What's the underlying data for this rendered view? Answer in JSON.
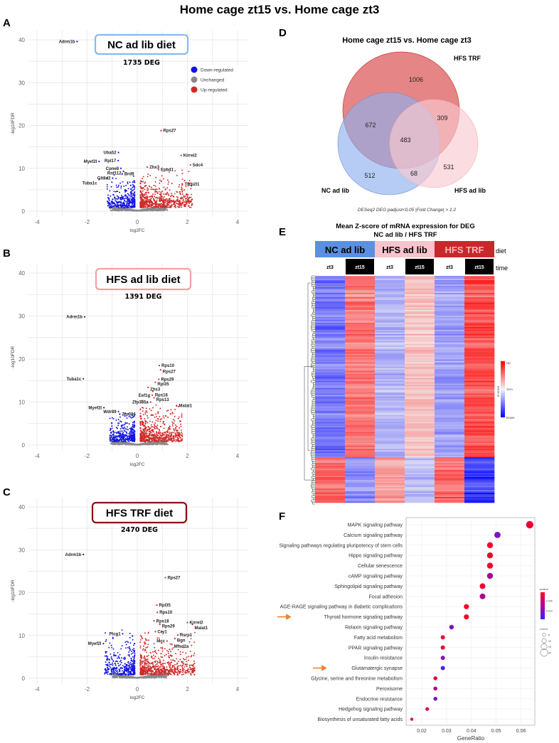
{
  "title": "Home cage zt15 vs. Home cage zt3",
  "panel_letters": [
    "A",
    "B",
    "C",
    "D",
    "E",
    "F"
  ],
  "chart_data": [
    {
      "type": "scatter",
      "id": "A",
      "title": "NC ad lib diet",
      "subtitle": "1735 DEG",
      "box_color": "#8ab8f0",
      "xlabel": "log2FC",
      "ylabel": "-log10FDR",
      "xlim": [
        -4.4,
        4.4
      ],
      "ylim": [
        -1,
        42
      ],
      "xticks": [
        "-4",
        "-2",
        "0",
        "2",
        "4"
      ],
      "yticks": [
        "0",
        "10",
        "20",
        "30",
        "40"
      ],
      "legend": {
        "position": "top-right",
        "entries": [
          {
            "label": "Down-regulated",
            "color": "#1414e6"
          },
          {
            "label": "Unchanged",
            "color": "#8a8a8a"
          },
          {
            "label": "Up-regulated",
            "color": "#d02a2a"
          }
        ]
      },
      "cloud": {
        "down_max_y": 7,
        "up_max_y": 8,
        "up_max_x": 2.2,
        "down_min_x": -1.2
      },
      "labeled_points": [
        {
          "gene": "Adrm1b",
          "x": -2.4,
          "y": 39.6,
          "status": "down"
        },
        {
          "gene": "Rps27",
          "x": 0.95,
          "y": 18.8,
          "status": "up"
        },
        {
          "gene": "Uba52",
          "x": -0.75,
          "y": 13.7,
          "status": "down"
        },
        {
          "gene": "Myef2l",
          "x": -1.52,
          "y": 11.6,
          "status": "down"
        },
        {
          "gene": "Rpl17",
          "x": -0.76,
          "y": 11.8,
          "status": "down"
        },
        {
          "gene": "Cpne8",
          "x": -0.65,
          "y": 10.0,
          "status": "down"
        },
        {
          "gene": "Rnf112",
          "x": -0.55,
          "y": 9.3,
          "status": "down"
        },
        {
          "gene": "Brd9",
          "x": -0.6,
          "y": 8.7,
          "status": "down"
        },
        {
          "gene": "Glt8d2",
          "x": -0.98,
          "y": 7.7,
          "status": "down"
        },
        {
          "gene": "Tuba1c",
          "x": -1.52,
          "y": 7.4,
          "status": "down"
        },
        {
          "gene": "Zhx3",
          "x": 0.4,
          "y": 10.3,
          "status": "up"
        },
        {
          "gene": "Epb41",
          "x": 0.85,
          "y": 9.7,
          "status": "up"
        },
        {
          "gene": "Kirrel2",
          "x": 1.75,
          "y": 13.0,
          "status": "up"
        },
        {
          "gene": "Sdc4",
          "x": 2.12,
          "y": 10.8,
          "status": "up"
        },
        {
          "gene": "Tfcp2l1",
          "x": 1.8,
          "y": 6.3,
          "status": "up"
        }
      ]
    },
    {
      "type": "scatter",
      "id": "B",
      "title": "HFS ad lib diet",
      "subtitle": "1391 DEG",
      "box_color": "#f3a0a0",
      "xlabel": "log2FC",
      "ylabel": "-log10FDR",
      "xlim": [
        -4.4,
        4.4
      ],
      "ylim": [
        -1,
        42
      ],
      "xticks": [
        "-4",
        "-2",
        "0",
        "2",
        "4"
      ],
      "yticks": [
        "0",
        "10",
        "20",
        "30",
        "40"
      ],
      "cloud": {
        "down_max_y": 5.5,
        "up_max_y": 9,
        "up_max_x": 1.8,
        "down_min_x": -1.1
      },
      "labeled_points": [
        {
          "gene": "Adrm1b",
          "x": -2.1,
          "y": 29.8,
          "status": "down"
        },
        {
          "gene": "Tuba1c",
          "x": -2.15,
          "y": 15.4,
          "status": "down"
        },
        {
          "gene": "Myef2l",
          "x": -1.33,
          "y": 8.7,
          "status": "down"
        },
        {
          "gene": "Wdr89",
          "x": -0.75,
          "y": 7.8,
          "status": "down"
        },
        {
          "gene": "Zfp386",
          "x": -0.7,
          "y": 7.2,
          "status": "down"
        },
        {
          "gene": "Rps10",
          "x": 0.88,
          "y": 18.5,
          "status": "up"
        },
        {
          "gene": "Rps27",
          "x": 0.93,
          "y": 17.5,
          "status": "up"
        },
        {
          "gene": "Rps29",
          "x": 0.86,
          "y": 15.3,
          "status": "up"
        },
        {
          "gene": "Rpl35",
          "x": 0.72,
          "y": 14.6,
          "status": "up"
        },
        {
          "gene": "Zhx3",
          "x": 0.43,
          "y": 13.4,
          "status": "up"
        },
        {
          "gene": "Rps18",
          "x": 0.62,
          "y": 12.5,
          "status": "up"
        },
        {
          "gene": "Eef1g",
          "x": 0.6,
          "y": 11.6,
          "status": "up"
        },
        {
          "gene": "Rps13",
          "x": 0.67,
          "y": 11.0,
          "status": "up"
        },
        {
          "gene": "Zfp385a",
          "x": 0.53,
          "y": 10.0,
          "status": "up"
        },
        {
          "gene": "Malat1",
          "x": 1.57,
          "y": 9.2,
          "status": "up"
        }
      ]
    },
    {
      "type": "scatter",
      "id": "C",
      "title": "HFS TRF diet",
      "subtitle": "2470 DEG",
      "box_color": "#8b1010",
      "xlabel": "log2FC",
      "ylabel": "-log10FDR",
      "xlim": [
        -4.4,
        4.4
      ],
      "ylim": [
        -1,
        42
      ],
      "xticks": [
        "-4",
        "-2",
        "0",
        "2",
        "4"
      ],
      "yticks": [
        "0",
        "10",
        "20",
        "30",
        "40"
      ],
      "cloud": {
        "down_max_y": 10,
        "up_max_y": 10,
        "up_max_x": 2.3,
        "down_min_x": -1.3
      },
      "labeled_points": [
        {
          "gene": "Adrm1b",
          "x": -2.15,
          "y": 28.9,
          "status": "down"
        },
        {
          "gene": "Rps27",
          "x": 1.12,
          "y": 23.5,
          "status": "up"
        },
        {
          "gene": "Rpl35",
          "x": 0.78,
          "y": 17.1,
          "status": "up"
        },
        {
          "gene": "Rps10",
          "x": 0.8,
          "y": 15.4,
          "status": "up"
        },
        {
          "gene": "Rps18",
          "x": 0.67,
          "y": 13.4,
          "status": "up"
        },
        {
          "gene": "Kirrel2",
          "x": 2.0,
          "y": 13.0,
          "status": "up"
        },
        {
          "gene": "Malat1",
          "x": 2.2,
          "y": 12.6,
          "status": "up"
        },
        {
          "gene": "Rps29",
          "x": 0.9,
          "y": 12.6,
          "status": "up"
        },
        {
          "gene": "Cry1",
          "x": 0.72,
          "y": 10.9,
          "status": "up"
        },
        {
          "gene": "Plcg1",
          "x": -0.58,
          "y": 10.4,
          "status": "down"
        },
        {
          "gene": "Rsrp1",
          "x": 1.62,
          "y": 10.1,
          "status": "up"
        },
        {
          "gene": "Bgn",
          "x": 1.5,
          "y": 9.3,
          "status": "up"
        },
        {
          "gene": "Mcc",
          "x": 1.19,
          "y": 8.7,
          "status": "up"
        },
        {
          "gene": "Mfsd2a",
          "x": 1.38,
          "y": 7.9,
          "status": "up"
        },
        {
          "gene": "Myef2l",
          "x": -1.35,
          "y": 8.1,
          "status": "down"
        }
      ]
    },
    {
      "type": "venn",
      "id": "D",
      "title": "Home cage zt15 vs. Home cage zt3",
      "sets": [
        {
          "name": "HFS TRF",
          "color": "#e06666"
        },
        {
          "name": "NC ad lib",
          "color": "#8fb0ee"
        },
        {
          "name": "HFS ad lib",
          "color": "#f9c9cf"
        }
      ],
      "regions": {
        "HFS_TRF_only": 1006,
        "NC_HFSTRF": 672,
        "HFSTRF_HFSadlib": 309,
        "all": 483,
        "NC_only": 512,
        "NC_HFSadlib": 68,
        "HFSadlib_only": 531
      },
      "footnote": "DESeq2 DEG padjust<0,05 |Fold Change| > 1.2"
    },
    {
      "type": "heatmap",
      "id": "E",
      "title": "Mean Z-score of mRNA expression for DEG",
      "subtitle": "NC ad lib / HFS TRF",
      "diet_row_label": "diet",
      "time_row_label": "time",
      "diets": [
        {
          "label": "NC ad lib",
          "color": "#5b8fe0",
          "text_color": "#000"
        },
        {
          "label": "HFS ad lib",
          "color": "#f7c4cc",
          "text_color": "#000"
        },
        {
          "label": "HFS TRF",
          "color": "#c8282b",
          "text_color": "#f2b8b8"
        }
      ],
      "columns": [
        {
          "time": "zt3",
          "dark": false
        },
        {
          "time": "zt15",
          "dark": true
        },
        {
          "time": "zt3",
          "dark": false
        },
        {
          "time": "zt15",
          "dark": true
        },
        {
          "time": "zt3",
          "dark": false
        },
        {
          "time": "zt15",
          "dark": true
        }
      ],
      "clusters": [
        {
          "fraction": 0.8,
          "mean_z": [
            -0.75,
            0.75,
            -0.4,
            0.3,
            -0.5,
            1.0
          ]
        },
        {
          "fraction": 0.2,
          "mean_z": [
            0.9,
            -0.6,
            0.5,
            -0.35,
            0.8,
            -1.1
          ]
        }
      ],
      "scale": {
        "title": "Z-score",
        "up": "Up",
        "zero": "zero",
        "down": "Down",
        "up_color": "#ff0000",
        "zero_color": "#f2f2f2",
        "down_color": "#0000ff"
      }
    },
    {
      "type": "scatter",
      "id": "F",
      "xlabel": "GeneRatio",
      "xlim": [
        0.0135,
        0.0655
      ],
      "xticks": [
        "0.02",
        "0.03",
        "0.04",
        "0.05",
        "0.06"
      ],
      "xtick_values": [
        0.02,
        0.03,
        0.04,
        0.05,
        0.06
      ],
      "categories": [
        "MAPK signaling pathway",
        "Calcium signaling pathway",
        "Signaling pathways regulating pluripotency of stem cells",
        "Hippo signaling pathway",
        "Cellular senescence",
        "cAMP signaling pathway",
        "Sphingolipid signaling pathway",
        "Focal adhesion",
        "AGE-RAGE signaling pathway in diabetic complications",
        "Thyroid hormone signaling pathway",
        "Relaxin signaling pathway",
        "Fatty acid metabolism",
        "PPAR signaling pathway",
        "Insulin resistance",
        "Glutamatergic synapse",
        "Glycine, serine and threonine metabolism",
        "Peroxisome",
        "Endocrine resistance",
        "Hedgehog signaling pathway",
        "Biosynthesis of unsaturated fatty acids"
      ],
      "gene_ratio": [
        0.0635,
        0.0505,
        0.0475,
        0.0475,
        0.0475,
        0.0475,
        0.0445,
        0.0445,
        0.038,
        0.038,
        0.032,
        0.0285,
        0.0285,
        0.0285,
        0.0285,
        0.0255,
        0.0255,
        0.0255,
        0.0222,
        0.016
      ],
      "pvalue": [
        0.002,
        0.01,
        0.001,
        0.001,
        0.001,
        0.008,
        0.002,
        0.007,
        0.001,
        0.001,
        0.01,
        0.002,
        0.002,
        0.009,
        0.014,
        0.002,
        0.006,
        0.011,
        0.003,
        0.003
      ],
      "count": [
        20,
        16,
        15,
        15,
        15,
        15,
        14,
        14,
        12,
        12,
        10,
        9,
        9,
        9,
        9,
        8,
        8,
        8,
        7,
        5
      ],
      "highlighted": [
        "Thyroid hormone signaling pathway",
        "Glutamatergic synapse"
      ],
      "arrow_color": "#f08030",
      "legend": {
        "position": "right",
        "pvalue_title": "pvalue",
        "pvalue_ticks": [
          "0.005",
          "0.010"
        ],
        "pvalue_tick_values": [
          0.005,
          0.01
        ],
        "pvalue_range": [
          0.0005,
          0.0145
        ],
        "count_title": "Count",
        "count_values": [
          5,
          10,
          15,
          20
        ],
        "count_labels": [
          "5",
          "10",
          "15",
          "20"
        ]
      }
    }
  ]
}
